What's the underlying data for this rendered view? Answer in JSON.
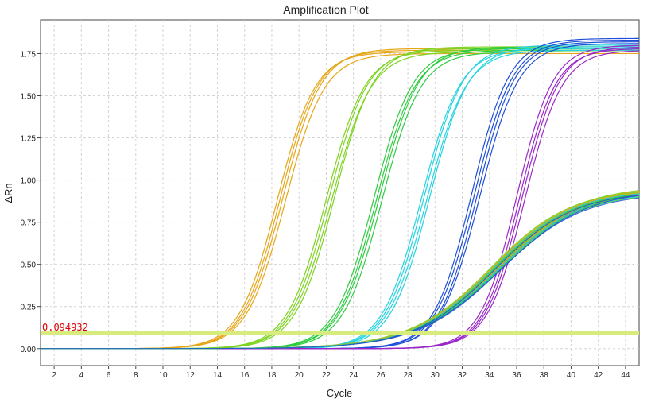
{
  "chart_data": {
    "type": "line",
    "title": "Amplification Plot",
    "xlabel": "Cycle",
    "ylabel": "ΔRn",
    "xlim": [
      1,
      45
    ],
    "ylim": [
      -0.1,
      1.95
    ],
    "x_ticks": [
      2,
      4,
      6,
      8,
      10,
      12,
      14,
      16,
      18,
      20,
      22,
      24,
      26,
      28,
      30,
      32,
      34,
      36,
      38,
      40,
      42,
      44
    ],
    "y_ticks": [
      0,
      0.25,
      0.5,
      0.75,
      1.0,
      1.25,
      1.5,
      1.75
    ],
    "y_tick_labels": [
      "0.00",
      "0.25",
      "0.50",
      "0.75",
      "1.00",
      "1.25",
      "1.50",
      "1.75"
    ],
    "grid": true,
    "threshold": {
      "value": 0.094,
      "label": "0.094932",
      "color": "#d7ec7c",
      "label_color": "#e00000"
    },
    "series_groups": [
      {
        "color": "#e6a619",
        "plateau": 1.76,
        "replicates": [
          {
            "ct": 18.4,
            "k": 0.72,
            "max": 1.76
          },
          {
            "ct": 18.6,
            "k": 0.72,
            "max": 1.77
          },
          {
            "ct": 18.8,
            "k": 0.71,
            "max": 1.78
          },
          {
            "ct": 19.0,
            "k": 0.7,
            "max": 1.75
          }
        ]
      },
      {
        "color": "#7ed321",
        "replicates": [
          {
            "ct": 22.0,
            "k": 0.7,
            "max": 1.77
          },
          {
            "ct": 22.2,
            "k": 0.7,
            "max": 1.78
          },
          {
            "ct": 22.4,
            "k": 0.69,
            "max": 1.76
          },
          {
            "ct": 22.6,
            "k": 0.7,
            "max": 1.79
          }
        ]
      },
      {
        "color": "#2ecc40",
        "replicates": [
          {
            "ct": 25.5,
            "k": 0.7,
            "max": 1.78
          },
          {
            "ct": 25.7,
            "k": 0.7,
            "max": 1.77
          },
          {
            "ct": 25.9,
            "k": 0.69,
            "max": 1.79
          },
          {
            "ct": 26.1,
            "k": 0.7,
            "max": 1.76
          }
        ]
      },
      {
        "color": "#22d3e0",
        "replicates": [
          {
            "ct": 29.0,
            "k": 0.7,
            "max": 1.78
          },
          {
            "ct": 29.2,
            "k": 0.7,
            "max": 1.8
          },
          {
            "ct": 29.4,
            "k": 0.69,
            "max": 1.77
          },
          {
            "ct": 29.6,
            "k": 0.7,
            "max": 1.79
          }
        ]
      },
      {
        "color": "#1f4fd8",
        "replicates": [
          {
            "ct": 32.7,
            "k": 0.72,
            "max": 1.84
          },
          {
            "ct": 32.9,
            "k": 0.71,
            "max": 1.83
          },
          {
            "ct": 33.1,
            "k": 0.72,
            "max": 1.82
          },
          {
            "ct": 33.3,
            "k": 0.7,
            "max": 1.81
          }
        ]
      },
      {
        "color": "#9b27c9",
        "replicates": [
          {
            "ct": 36.0,
            "k": 0.75,
            "max": 1.8
          },
          {
            "ct": 36.2,
            "k": 0.75,
            "max": 1.78
          },
          {
            "ct": 36.4,
            "k": 0.74,
            "max": 1.79
          },
          {
            "ct": 36.6,
            "k": 0.73,
            "max": 1.77
          }
        ]
      }
    ],
    "low_plateau_group": {
      "colors": [
        "#7ed321",
        "#e6a619",
        "#22d3e0",
        "#2ecc40",
        "#1f4fd8"
      ],
      "replicates": [
        {
          "ct": 34.3,
          "k": 0.33,
          "max": 0.96
        },
        {
          "ct": 34.4,
          "k": 0.33,
          "max": 0.95
        },
        {
          "ct": 34.5,
          "k": 0.32,
          "max": 0.97
        },
        {
          "ct": 34.6,
          "k": 0.33,
          "max": 0.94
        },
        {
          "ct": 34.7,
          "k": 0.32,
          "max": 0.96
        },
        {
          "ct": 34.2,
          "k": 0.34,
          "max": 0.95
        }
      ]
    }
  }
}
